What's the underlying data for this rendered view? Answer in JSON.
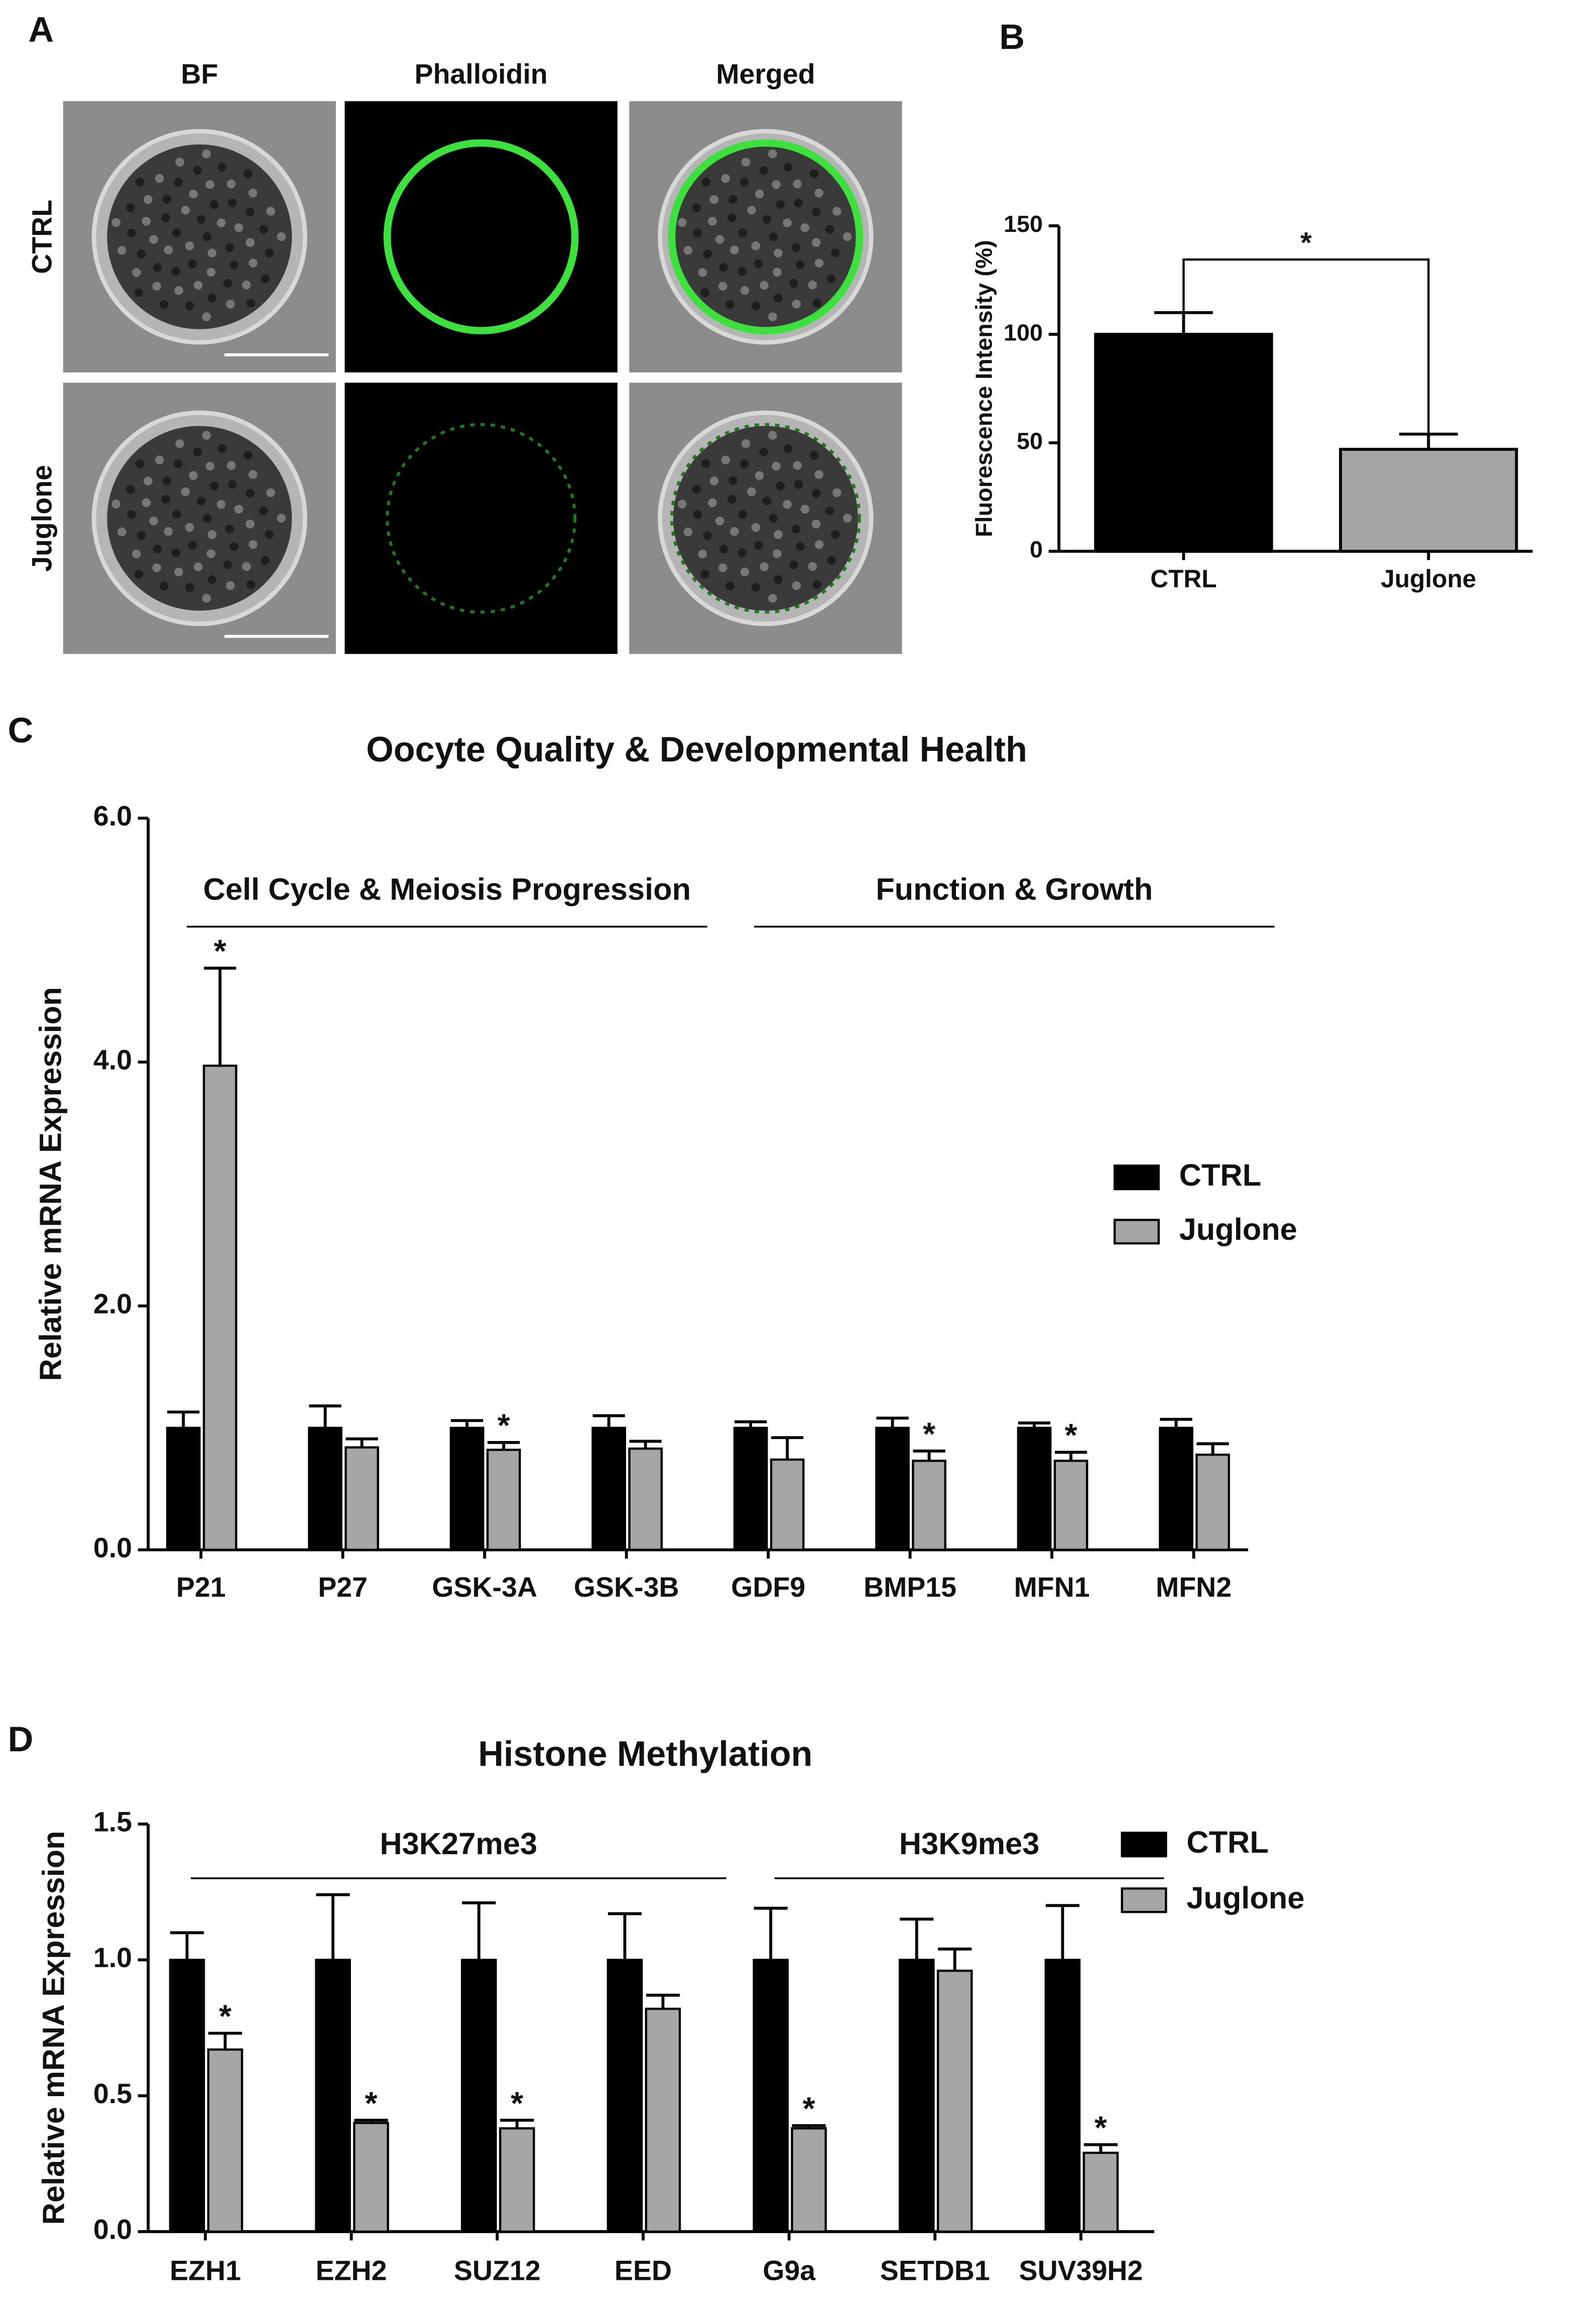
{
  "image_panel": {
    "panel_label": "A",
    "columns": [
      "BF",
      "Phalloidin",
      "Merged"
    ],
    "rows": [
      "CTRL",
      "Juglone"
    ]
  },
  "chart_data": [
    {
      "type": "bar",
      "panel_label": "B",
      "y_label": "Fluorescence Intensity (%)",
      "categories": [
        "CTRL",
        "Juglone"
      ],
      "values": [
        100,
        47
      ],
      "errors": [
        10,
        7
      ],
      "colors": [
        "#000000",
        "#a6a6a6"
      ],
      "significance": "*",
      "ylim": [
        0,
        150
      ],
      "yticks": [
        0,
        50,
        100,
        150
      ]
    },
    {
      "type": "bar",
      "panel_label": "C",
      "title": "Oocyte Quality & Developmental Health",
      "y_label": "Relative mRNA Expression",
      "categories": [
        "P21",
        "P27",
        "GSK-3A",
        "GSK-3B",
        "GDF9",
        "BMP15",
        "MFN1",
        "MFN2"
      ],
      "series": [
        {
          "name": "CTRL",
          "color": "#000000",
          "values": [
            1.0,
            1.0,
            1.0,
            1.0,
            1.0,
            1.0,
            1.0,
            1.0
          ],
          "errors": [
            0.13,
            0.18,
            0.06,
            0.1,
            0.05,
            0.08,
            0.04,
            0.07
          ]
        },
        {
          "name": "Juglone",
          "color": "#a6a6a6",
          "values": [
            3.97,
            0.84,
            0.82,
            0.83,
            0.74,
            0.73,
            0.73,
            0.78
          ],
          "errors": [
            0.8,
            0.07,
            0.06,
            0.06,
            0.18,
            0.08,
            0.07,
            0.09
          ],
          "significance": [
            "*",
            null,
            "*",
            null,
            null,
            "*",
            "*",
            null
          ]
        }
      ],
      "groups": [
        {
          "label": "Cell Cycle & Meiosis Progression",
          "categories": [
            "P21",
            "P27",
            "GSK-3A",
            "GSK-3B"
          ]
        },
        {
          "label": "Function & Growth",
          "categories": [
            "GDF9",
            "BMP15",
            "MFN1",
            "MFN2"
          ]
        }
      ],
      "ylim": [
        0,
        6
      ],
      "yticks": [
        {
          "value": 0,
          "label": "0.0"
        },
        {
          "value": 2,
          "label": "2.0"
        },
        {
          "value": 4,
          "label": "4.0"
        },
        {
          "value": 6,
          "label": "6.0"
        }
      ],
      "legend": "right"
    },
    {
      "type": "bar",
      "panel_label": "D",
      "title": "Histone Methylation",
      "y_label": "Relative mRNA Expression",
      "categories": [
        "EZH1",
        "EZH2",
        "SUZ12",
        "EED",
        "G9a",
        "SETDB1",
        "SUV39H2"
      ],
      "series": [
        {
          "name": "CTRL",
          "color": "#000000",
          "values": [
            1.0,
            1.0,
            1.0,
            1.0,
            1.0,
            1.0,
            1.0
          ],
          "errors": [
            0.1,
            0.24,
            0.21,
            0.17,
            0.19,
            0.15,
            0.2
          ]
        },
        {
          "name": "Juglone",
          "color": "#a6a6a6",
          "values": [
            0.67,
            0.4,
            0.38,
            0.82,
            0.38,
            0.96,
            0.29
          ],
          "errors": [
            0.06,
            0.01,
            0.03,
            0.05,
            0.01,
            0.08,
            0.03
          ],
          "significance": [
            "*",
            "*",
            "*",
            null,
            "*",
            null,
            "*"
          ]
        }
      ],
      "groups": [
        {
          "label": "H3K27me3",
          "categories": [
            "EZH1",
            "EZH2",
            "SUZ12",
            "EED"
          ]
        },
        {
          "label": "H3K9me3",
          "categories": [
            "G9a",
            "SETDB1",
            "SUV39H2"
          ]
        }
      ],
      "ylim": [
        0,
        1.5
      ],
      "yticks": [
        {
          "value": 0,
          "label": "0.0"
        },
        {
          "value": 0.5,
          "label": "0.5"
        },
        {
          "value": 1.0,
          "label": "1.0"
        },
        {
          "value": 1.5,
          "label": "1.5"
        }
      ],
      "legend": "right"
    }
  ]
}
